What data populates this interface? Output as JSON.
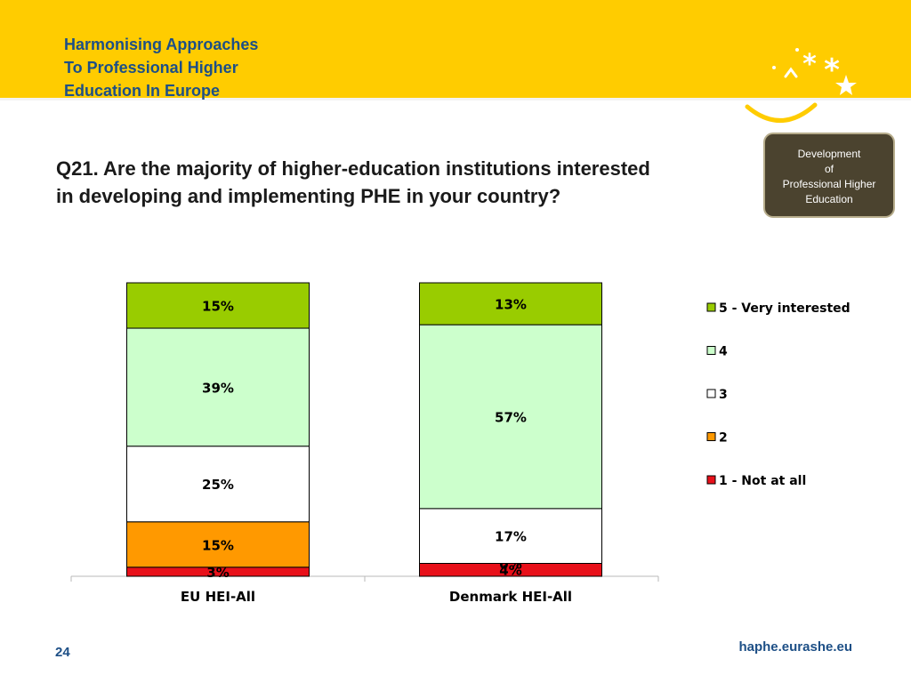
{
  "header": {
    "brand_lines": [
      "Harmonising Approaches",
      "To Professional Higher",
      "Education In Europe"
    ],
    "logo_icon": "stars-smile-icon"
  },
  "badge": {
    "lines": [
      "Development",
      "of",
      "Professional Higher",
      "Education"
    ],
    "colors": {
      "background": "#4b432f",
      "border": "#b7ad8c"
    }
  },
  "question": {
    "line1": "Q21. Are the majority of higher-education institutions interested",
    "line2": "in developing and implementing PHE in your country?"
  },
  "footer": {
    "page_number": "24",
    "url": "haphe.eurashe.eu"
  },
  "chart_data": {
    "type": "bar",
    "stacked": true,
    "percent_stacked": true,
    "categories": [
      "EU HEI-All",
      "Denmark HEI-All"
    ],
    "series": [
      {
        "name": "1 - Not at all",
        "values": [
          3,
          4
        ],
        "labels": [
          "3%",
          "4%"
        ],
        "color": "#e8101a"
      },
      {
        "name": "2",
        "values": [
          15,
          0
        ],
        "labels": [
          "15%",
          "0%"
        ],
        "color": "#ff9900"
      },
      {
        "name": "3",
        "values": [
          25,
          17
        ],
        "labels": [
          "25%",
          "17%"
        ],
        "color": "#ffffff"
      },
      {
        "name": "4",
        "values": [
          39,
          57
        ],
        "labels": [
          "39%",
          "57%"
        ],
        "color": "#ccffcc"
      },
      {
        "name": "5 - Very interested",
        "values": [
          15,
          13
        ],
        "labels": [
          "15%",
          "13%"
        ],
        "color": "#99cc00"
      }
    ],
    "legend_order": [
      "5 - Very interested",
      "4",
      "3",
      "2",
      "1 - Not at all"
    ],
    "legend_position": "right",
    "grid": false,
    "ylim": [
      0,
      100
    ]
  }
}
